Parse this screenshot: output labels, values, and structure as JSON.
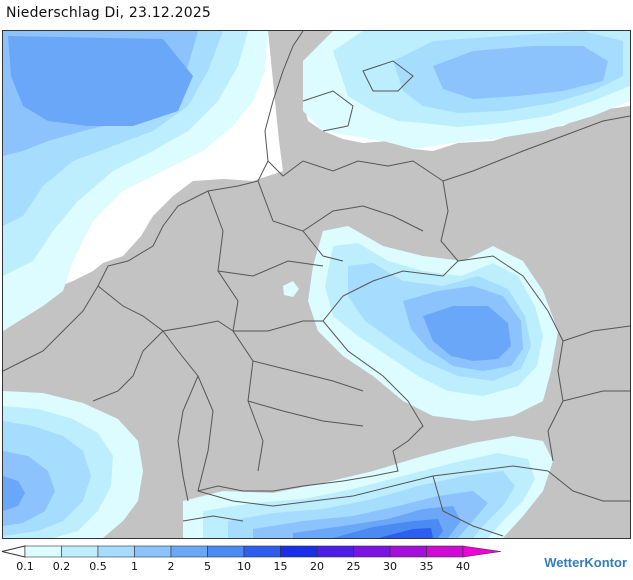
{
  "header": {
    "title": "Niederschlag Di, 23.12.2025"
  },
  "legend": {
    "unit": "",
    "levels": [
      {
        "label": "0.1",
        "color": "#dcfcff"
      },
      {
        "label": "0.2",
        "color": "#bdeefe"
      },
      {
        "label": "0.5",
        "color": "#a6dcfe"
      },
      {
        "label": "1",
        "color": "#8cc3fd"
      },
      {
        "label": "2",
        "color": "#6aa7f8"
      },
      {
        "label": "5",
        "color": "#4b8af3"
      },
      {
        "label": "10",
        "color": "#2d5ef0"
      },
      {
        "label": "15",
        "color": "#1a2de8"
      },
      {
        "label": "20",
        "color": "#4b1de6"
      },
      {
        "label": "25",
        "color": "#7a14e0"
      },
      {
        "label": "30",
        "color": "#a50fdc"
      },
      {
        "label": "35",
        "color": "#d00ad6"
      },
      {
        "label": "40",
        "color": "#f000d8"
      }
    ]
  },
  "brand": {
    "name": "WetterKontor"
  },
  "colors": {
    "land": "#c3c3c3",
    "sea": "#ffffff",
    "borders": "#555555"
  }
}
